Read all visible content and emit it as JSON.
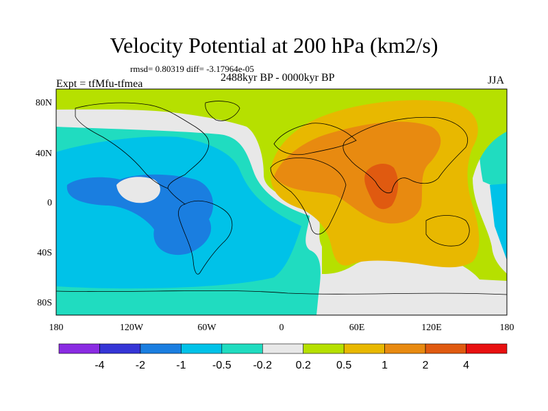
{
  "title": "Velocity Potential at 200 hPa (km2/s)",
  "subtitle_left": "rmsd= 0.80319 diff= -3.17964e-05",
  "subtitle_center": "2488kyr BP - 0000kyr BP",
  "left_label": "Expt = tfMfu-tfmea",
  "right_label": "JJA",
  "x_ticks": [
    "180",
    "120W",
    "60W",
    "0",
    "60E",
    "120E",
    "180"
  ],
  "y_ticks": [
    "80N",
    "40N",
    "0",
    "40S",
    "80S"
  ],
  "colorbar": {
    "labels": [
      "-4",
      "-2",
      "-1",
      "-0.5",
      "-0.2",
      "0.2",
      "0.5",
      "1",
      "2",
      "4"
    ],
    "colors": [
      "#8a2be2",
      "#3535d6",
      "#1a7ee0",
      "#00c2e8",
      "#20dcc0",
      "#e8e8e8",
      "#b6e000",
      "#e8b800",
      "#e88a10",
      "#e05a10",
      "#e81010"
    ]
  },
  "map_colors": {
    "lev_m1": "#1a7ee0",
    "lev_m05": "#00c2e8",
    "lev_m02": "#20dcc0",
    "lev_0": "#e8e8e8",
    "lev_p02": "#b6e000",
    "lev_p05": "#e8b800",
    "lev_p1": "#e88a10",
    "lev_p2": "#e05a10"
  }
}
